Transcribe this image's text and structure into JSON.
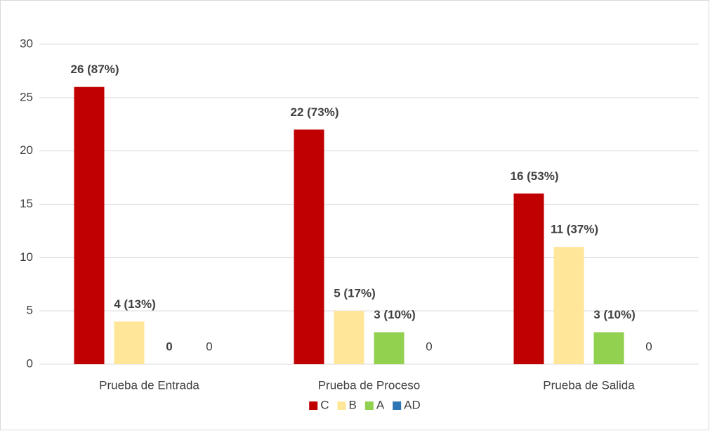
{
  "chart_data": {
    "type": "bar",
    "categories": [
      "Prueba de Entrada",
      "Prueba de Proceso",
      "Prueba de Salida"
    ],
    "series": [
      {
        "name": "C",
        "color": "#c00000",
        "values": [
          26,
          22,
          16
        ],
        "value_labels": [
          "26 (87%)",
          "22 (73%)",
          "16 (53%)"
        ],
        "bold_labels": true
      },
      {
        "name": "B",
        "color": "#ffe699",
        "values": [
          4,
          5,
          11
        ],
        "value_labels": [
          "4 (13%)",
          "5 (17%)",
          "11 (37%)"
        ],
        "bold_labels": true
      },
      {
        "name": "A",
        "color": "#92d050",
        "values": [
          0,
          3,
          3
        ],
        "value_labels": [
          "0",
          "3 (10%)",
          "3 (10%)"
        ],
        "bold_labels": true
      },
      {
        "name": "AD",
        "color": "#2e75b6",
        "values": [
          0,
          0,
          0
        ],
        "value_labels": [
          "0",
          "0",
          "0"
        ],
        "bold_labels": false
      }
    ],
    "ylim": [
      0,
      30
    ],
    "yticks": [
      0,
      5,
      10,
      15,
      20,
      25,
      30
    ],
    "grid": true,
    "legend": "bottom"
  }
}
